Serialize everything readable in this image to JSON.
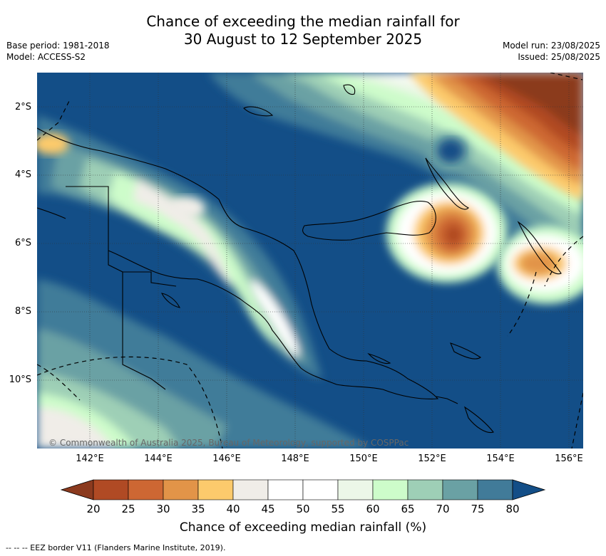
{
  "title": {
    "line1": "Chance of exceeding the median rainfall for",
    "line2": "30 August to 12 September 2025"
  },
  "meta_left": {
    "base_period": "Base period: 1981-2018",
    "model": "Model: ACCESS-S2"
  },
  "meta_right": {
    "model_run": "Model run: 23/08/2025",
    "issued": "Issued: 25/08/2025"
  },
  "map": {
    "lat_labels": [
      "2°S",
      "4°S",
      "6°S",
      "8°S",
      "10°S"
    ],
    "lon_labels": [
      "142°E",
      "144°E",
      "146°E",
      "148°E",
      "150°E",
      "152°E",
      "154°E",
      "156°E"
    ],
    "copyright": "© Commonwealth of Australia 2025, Bureau of Meteorology, supported by COSPPac"
  },
  "colorbar": {
    "ticks": [
      "20",
      "25",
      "30",
      "35",
      "40",
      "45",
      "50",
      "55",
      "60",
      "65",
      "70",
      "75",
      "80"
    ],
    "colors": [
      "#8b3a1e",
      "#b04a24",
      "#cd6733",
      "#e29448",
      "#fcca6c",
      "#f0ede8",
      "#ffffff",
      "#ffffff",
      "#ecf7e8",
      "#cdfcca",
      "#9ecfb6",
      "#6aa1a4",
      "#417b99",
      "#134e87"
    ],
    "label": "Chance of exceeding median rainfall (%)"
  },
  "legend": {
    "marker": "-- --",
    "text": "-- EEZ border V11 (Flanders Marine Institute, 2019)."
  }
}
